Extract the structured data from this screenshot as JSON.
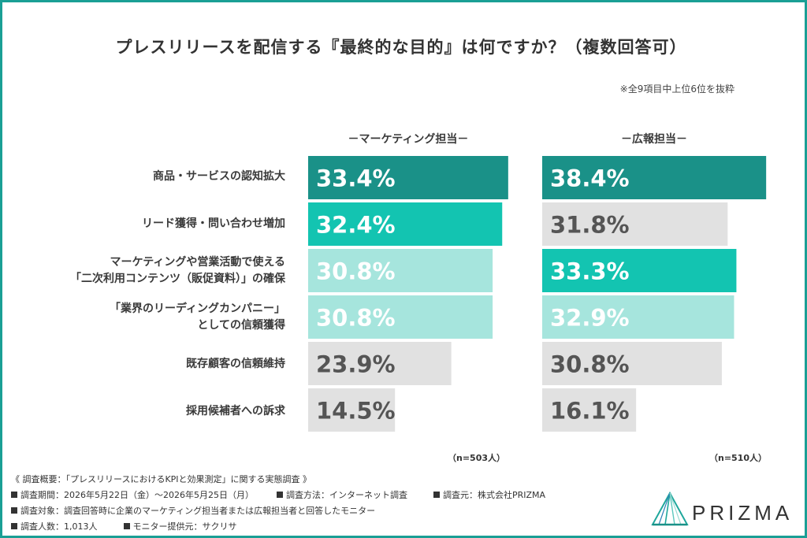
{
  "title": "プレスリリースを配信する『最終的な目的』は何ですか？（複数回答可）",
  "note": "※全9項目中上位6位を抜粋",
  "colors": {
    "frame": "#1a9f95",
    "rank1": "#1a9188",
    "rank2": "#13c4b1",
    "rank3": "#a6e5dd",
    "other": "#e1e1e1",
    "label_dark": "#ffffff",
    "label_light": "#555555"
  },
  "chart_data": {
    "type": "bar",
    "orientation": "horizontal",
    "categories": [
      [
        "商品・サービスの認知拡大"
      ],
      [
        "リード獲得・問い合わせ増加"
      ],
      [
        "マーケティングや営業活動で使える",
        "「二次利用コンテンツ（販促資料）」の確保"
      ],
      [
        "「業界のリーディングカンパニー」",
        "としての信頼獲得"
      ],
      [
        "既存顧客の信頼維持"
      ],
      [
        "採用候補者への訴求"
      ]
    ],
    "series": [
      {
        "name": "－マーケティング担当－",
        "values": [
          33.4,
          32.4,
          30.8,
          30.8,
          23.9,
          14.5
        ],
        "labels": [
          "33.4%",
          "32.4%",
          "30.8%",
          "30.8%",
          "23.9%",
          "14.5%"
        ],
        "ranks": [
          "rank1",
          "rank2",
          "rank3",
          "rank3",
          "other",
          "other"
        ],
        "n": "（n=503人）"
      },
      {
        "name": "－広報担当－",
        "values": [
          38.4,
          31.8,
          33.3,
          32.9,
          30.8,
          16.1
        ],
        "labels": [
          "38.4%",
          "31.8%",
          "33.3%",
          "32.9%",
          "30.8%",
          "16.1%"
        ],
        "ranks": [
          "rank1",
          "other",
          "rank2",
          "rank3",
          "other",
          "other"
        ],
        "n": "（n=510人）"
      }
    ],
    "grid": false
  },
  "footer": {
    "line1": "《 調査概要：「プレスリリースにおけるKPIと効果測定」に関する実態調査 》",
    "period": "調査期間：2026年5月22日（金）〜2026年5月25日（月）",
    "method": "調査方法：インターネット調査",
    "source": "調査元：株式会社PRIZMA",
    "target": "調査対象：調査回答時に企業のマーケティング担当者または広報担当者と回答したモニター",
    "count": "調査人数：1,013人",
    "provider": "モニター提供元：サクリサ"
  },
  "logo": {
    "text": "PRIZMA",
    "icon": "prism-icon"
  }
}
